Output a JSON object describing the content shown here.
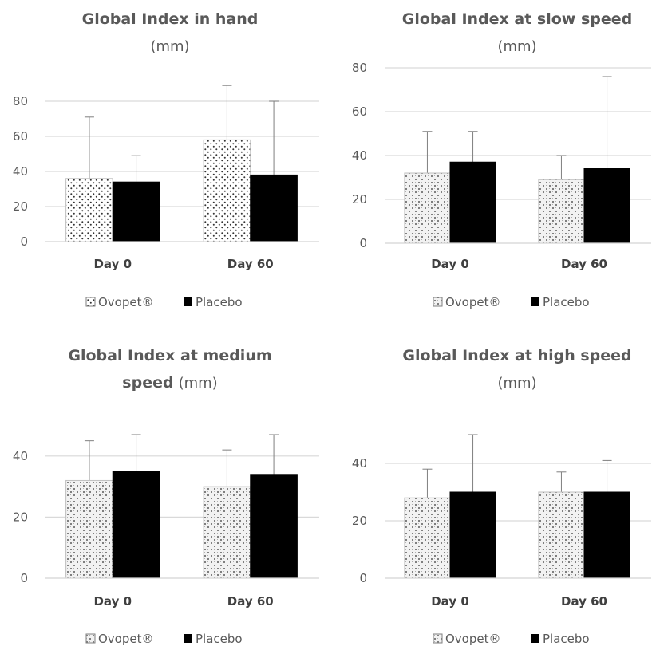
{
  "chart_data": [
    {
      "type": "bar",
      "title": "Global Index in hand",
      "title_unit": "(mm)",
      "categories": [
        "Day 0",
        "Day 60"
      ],
      "yticks": [
        "0",
        "20",
        "40",
        "60",
        "80"
      ],
      "ylim": [
        0,
        90
      ],
      "series": [
        {
          "name": "Ovopet®",
          "pattern": "dots",
          "values": [
            36,
            58
          ],
          "errors": [
            35,
            31
          ]
        },
        {
          "name": "Placebo",
          "pattern": "solid",
          "values": [
            34,
            38
          ],
          "errors": [
            15,
            42
          ]
        }
      ],
      "legend_position": "bottom",
      "grid": true
    },
    {
      "type": "bar",
      "title": "Global Index at slow speed",
      "title_unit": "(mm)",
      "categories": [
        "Day 0",
        "Day 60"
      ],
      "yticks": [
        "0",
        "20",
        "40",
        "60",
        "80"
      ],
      "ylim": [
        0,
        80
      ],
      "series": [
        {
          "name": "Ovopet®",
          "pattern": "checker",
          "values": [
            32,
            29
          ],
          "errors": [
            19,
            11
          ]
        },
        {
          "name": "Placebo",
          "pattern": "solid",
          "values": [
            37,
            34
          ],
          "errors": [
            14,
            42
          ]
        }
      ],
      "legend_position": "bottom",
      "grid": true
    },
    {
      "type": "bar",
      "title": "Global Index at medium",
      "title_line2": "speed",
      "title_unit": "(mm)",
      "categories": [
        "Day 0",
        "Day 60"
      ],
      "yticks": [
        "0",
        "20",
        "40"
      ],
      "ylim": [
        0,
        47
      ],
      "series": [
        {
          "name": "Ovopet®",
          "pattern": "checker",
          "values": [
            32,
            30
          ],
          "errors": [
            13,
            12
          ]
        },
        {
          "name": "Placebo",
          "pattern": "solid",
          "values": [
            35,
            34
          ],
          "errors": [
            12,
            13
          ]
        }
      ],
      "legend_position": "bottom",
      "grid": true
    },
    {
      "type": "bar",
      "title": "Global Index at high speed",
      "title_unit": "(mm)",
      "categories": [
        "Day 0",
        "Day 60"
      ],
      "yticks": [
        "0",
        "20",
        "40"
      ],
      "ylim": [
        0,
        50
      ],
      "series": [
        {
          "name": "Ovopet®",
          "pattern": "checker",
          "values": [
            28,
            30
          ],
          "errors": [
            10,
            7
          ]
        },
        {
          "name": "Placebo",
          "pattern": "solid",
          "values": [
            30,
            30
          ],
          "errors": [
            20,
            11
          ]
        }
      ],
      "legend_position": "bottom",
      "grid": true
    }
  ]
}
